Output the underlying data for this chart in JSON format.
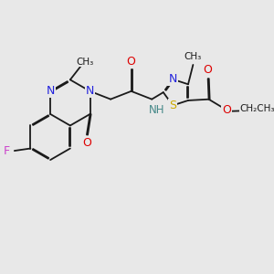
{
  "background_color": "#e8e8e8",
  "bond_color": "#1a1a1a",
  "figsize": [
    3.0,
    3.0
  ],
  "dpi": 100,
  "colors": {
    "F": "#cc44cc",
    "N": "#2222dd",
    "O": "#dd0000",
    "S": "#ccaa00",
    "C": "#1a1a1a",
    "NH": "#448888",
    "default": "#1a1a1a"
  },
  "lw": 1.3,
  "dbo": 0.012,
  "xlim": [
    0,
    3.0
  ],
  "ylim": [
    0,
    3.0
  ]
}
